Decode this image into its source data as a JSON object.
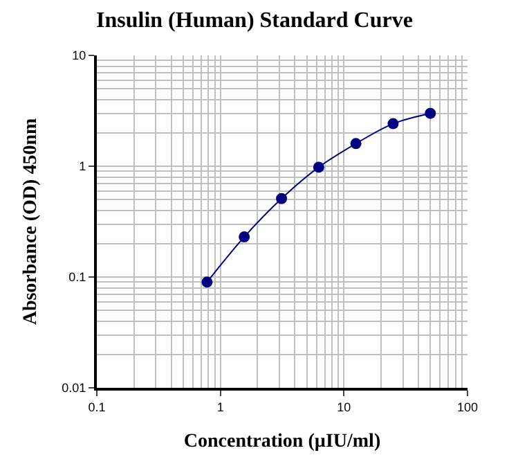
{
  "chart_data": {
    "type": "line",
    "title": "Insulin (Human) Standard Curve",
    "xlabel": "Concentration (µIU/ml)",
    "ylabel": "Absorbance (OD) 450nm",
    "x": [
      0.78,
      1.56,
      3.125,
      6.25,
      12.5,
      25,
      50
    ],
    "series": [
      {
        "color": "#000080",
        "values": [
          0.09,
          0.23,
          0.51,
          0.98,
          1.6,
          2.42,
          3.0
        ]
      }
    ],
    "log": "xy",
    "xlim": [
      0.1,
      100
    ],
    "ylim": [
      0.01,
      10
    ],
    "xticks": [
      0.1,
      1,
      10,
      100
    ],
    "yticks": [
      0.01,
      0.1,
      1,
      10
    ],
    "grid": true,
    "marker": "circle",
    "line_style": "solid"
  }
}
